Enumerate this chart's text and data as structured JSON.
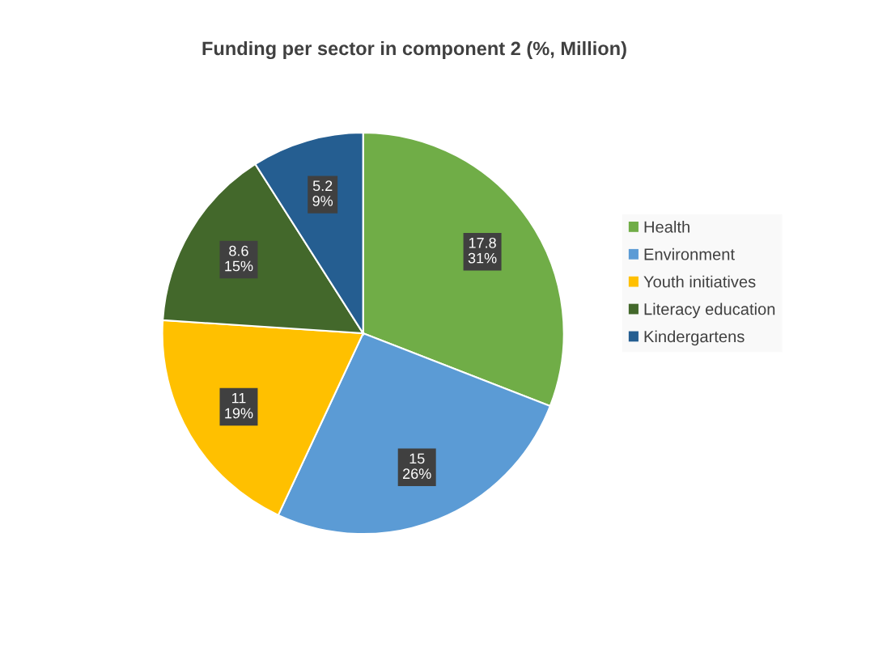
{
  "chart_data": {
    "type": "pie",
    "title": "Funding per sector in component 2 (%, Million)",
    "categories": [
      "Health",
      "Environment",
      "Youth initiatives",
      "Literacy education",
      "Kindergartens"
    ],
    "values": [
      17.8,
      15,
      11,
      8.6,
      5.2
    ],
    "colors": [
      "#70ad47",
      "#5b9bd5",
      "#ffc000",
      "#43682b",
      "#255e91"
    ],
    "value_labels": [
      "17.8\n31%",
      "15\n26%",
      "11\n19%",
      "8.6\n15%",
      "5.2\n9%"
    ],
    "legend": "right"
  }
}
